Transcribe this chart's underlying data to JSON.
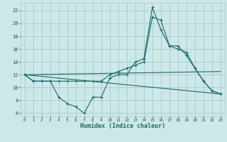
{
  "xlabel": "Humidex (Indice chaleur)",
  "bg_color": "#cde8e8",
  "grid_color": "#a8c8c8",
  "line_color": "#1a6b6b",
  "line1_x": [
    0,
    1,
    2,
    3,
    4,
    5,
    6,
    7,
    8,
    9,
    10,
    11,
    12,
    13,
    14,
    15,
    16,
    17,
    18,
    19,
    20,
    21,
    22,
    23
  ],
  "line1_y": [
    12,
    11,
    11,
    11,
    8.5,
    7.5,
    7,
    6,
    8.5,
    8.5,
    11.5,
    12,
    12,
    14,
    14.5,
    22.5,
    19,
    16.5,
    16.5,
    15,
    13,
    11,
    9.5,
    9
  ],
  "line2_x": [
    0,
    1,
    2,
    3,
    4,
    5,
    6,
    7,
    8,
    9,
    10,
    11,
    12,
    13,
    14,
    15,
    16,
    17,
    18,
    19,
    20,
    21,
    22,
    23
  ],
  "line2_y": [
    12,
    11,
    11,
    11,
    11,
    11,
    11,
    11,
    11,
    11,
    12,
    12.5,
    13,
    13.5,
    14,
    21,
    20.5,
    16.5,
    16,
    15.5,
    13,
    11,
    9.5,
    9
  ],
  "line3_x": [
    0,
    23
  ],
  "line3_y": [
    12,
    9
  ],
  "line4_x": [
    0,
    23
  ],
  "line4_y": [
    12,
    12.5
  ],
  "xlim": [
    -0.5,
    23.5
  ],
  "ylim": [
    5.5,
    23.2
  ],
  "xticks": [
    0,
    1,
    2,
    3,
    4,
    5,
    6,
    7,
    8,
    9,
    10,
    11,
    12,
    13,
    14,
    15,
    16,
    17,
    18,
    19,
    20,
    21,
    22,
    23
  ],
  "yticks": [
    6,
    8,
    10,
    12,
    14,
    16,
    18,
    20,
    22
  ]
}
